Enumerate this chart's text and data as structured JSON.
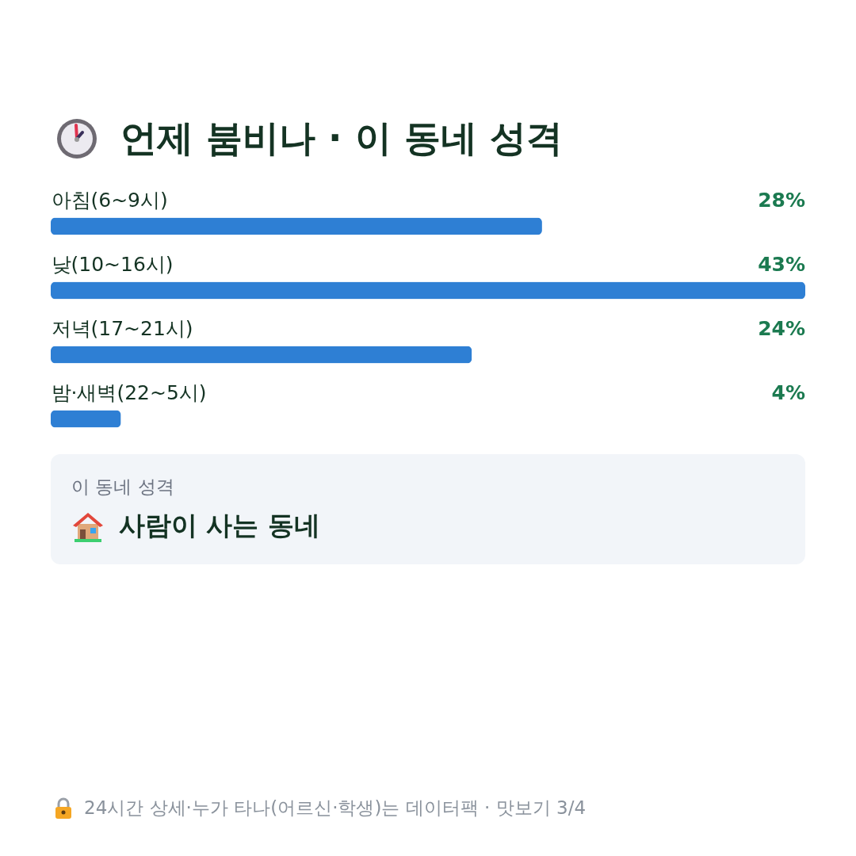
{
  "chart_data": {
    "type": "bar",
    "orientation": "horizontal",
    "title": "언제 붐비나 · 이 동네 성격",
    "categories": [
      "아침(6~9시)",
      "낮(10~16시)",
      "저녁(17~21시)",
      "밤·새벽(22~5시)"
    ],
    "values": [
      28,
      43,
      24,
      4
    ],
    "value_labels": [
      "28%",
      "43%",
      "24%",
      "4%"
    ],
    "color": "#2e7fd4",
    "tick_labels": "y",
    "annotations": [
      "이 동네 성격",
      "사람이 사는 동네",
      "24시간 상세·누가 타나(어르신·학생)는 데이터팩 · 맛보기 3/4"
    ]
  }
}
